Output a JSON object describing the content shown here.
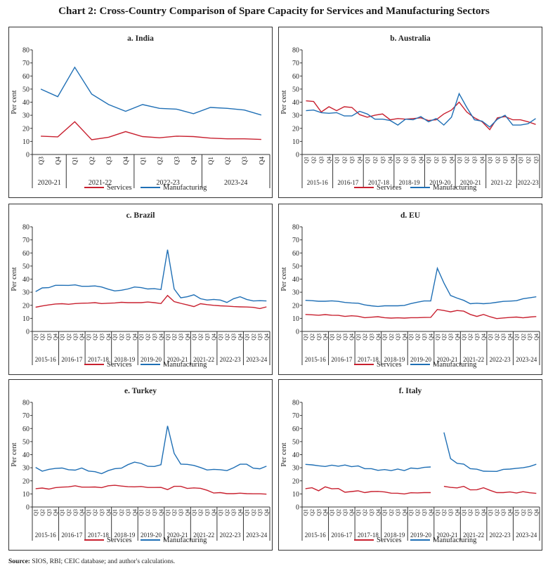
{
  "title": "Chart 2: Cross-Country Comparison of Spare Capacity for Services and Manufacturing Sectors",
  "source_label": "Source:",
  "source_text": "SIOS, RBI; CEIC database; and author's calculations.",
  "colors": {
    "Services": "#c8202f",
    "Manufacturing": "#1f6fb5"
  },
  "chart_data": [
    {
      "type": "line",
      "title": "a. India",
      "ylabel": "Per cent",
      "ylim": [
        0,
        80
      ],
      "yticks": [
        0,
        10,
        20,
        30,
        40,
        50,
        60,
        70,
        80
      ],
      "groups": [
        {
          "label": "2020-21",
          "quarters": [
            "Q3",
            "Q4"
          ]
        },
        {
          "label": "2021-22",
          "quarters": [
            "Q1",
            "Q2",
            "Q3",
            "Q4"
          ]
        },
        {
          "label": "2022-23",
          "quarters": [
            "Q1",
            "Q2",
            "Q3",
            "Q4"
          ]
        },
        {
          "label": "2023-24",
          "quarters": [
            "Q1",
            "Q2",
            "Q3",
            "Q4"
          ]
        }
      ],
      "series": [
        {
          "name": "Services",
          "values": [
            14,
            13.5,
            25,
            11.3,
            13.2,
            17.5,
            13.7,
            12.8,
            14,
            13.7,
            12.5,
            12,
            12,
            11.5
          ]
        },
        {
          "name": "Manufacturing",
          "values": [
            50,
            44.2,
            66.7,
            46.2,
            38.2,
            33,
            38.2,
            35.3,
            34.7,
            31.2,
            36,
            35.3,
            34,
            30.2
          ]
        }
      ],
      "legend": "bottom"
    },
    {
      "type": "line",
      "title": "b. Australia",
      "ylabel": "Per cent",
      "ylim": [
        0,
        80
      ],
      "yticks": [
        0,
        10,
        20,
        30,
        40,
        50,
        60,
        70,
        80
      ],
      "groups": [
        {
          "label": "2015-16",
          "quarters": [
            "Q1",
            "Q2",
            "Q3",
            "Q4"
          ]
        },
        {
          "label": "2016-17",
          "quarters": [
            "Q1",
            "Q2",
            "Q3",
            "Q4"
          ]
        },
        {
          "label": "2017-18",
          "quarters": [
            "Q1",
            "Q2",
            "Q3",
            "Q4"
          ]
        },
        {
          "label": "2018-19",
          "quarters": [
            "Q1",
            "Q2",
            "Q3",
            "Q4"
          ]
        },
        {
          "label": "2019-20",
          "quarters": [
            "Q1",
            "Q2",
            "Q3",
            "Q4"
          ]
        },
        {
          "label": "2020-21",
          "quarters": [
            "Q1",
            "Q2",
            "Q3",
            "Q4"
          ]
        },
        {
          "label": "2021-22",
          "quarters": [
            "Q1",
            "Q2",
            "Q3",
            "Q4"
          ]
        },
        {
          "label": "2022-23",
          "quarters": [
            "Q1",
            "Q2",
            "Q3"
          ]
        }
      ],
      "series": [
        {
          "name": "Services",
          "values": [
            41,
            40.5,
            32.5,
            36.5,
            33.5,
            36.5,
            36,
            30.5,
            28.5,
            30,
            31,
            26.5,
            27.5,
            27,
            27.5,
            28,
            26,
            26.5,
            31,
            34,
            40,
            32.5,
            28,
            25,
            19,
            28,
            29,
            26.5,
            26.5,
            25,
            23
          ]
        },
        {
          "name": "Manufacturing",
          "values": [
            33.5,
            34,
            32,
            31.5,
            32,
            29.5,
            29.5,
            33,
            31,
            27,
            27,
            26,
            22.5,
            27,
            26.5,
            29,
            25,
            27.5,
            22.5,
            28.5,
            46.5,
            36,
            26.5,
            25.5,
            21,
            27,
            30,
            22.5,
            22.5,
            23.5,
            27.5
          ]
        }
      ],
      "legend": "bottom"
    },
    {
      "type": "line",
      "title": "c. Brazil",
      "ylabel": "Per cent",
      "ylim": [
        0,
        80
      ],
      "yticks": [
        0,
        10,
        20,
        30,
        40,
        50,
        60,
        70,
        80
      ],
      "groups": "standard",
      "series": [
        {
          "name": "Services",
          "values": [
            18.5,
            19.5,
            20.3,
            21,
            21.2,
            20.8,
            21.3,
            21.6,
            21.7,
            22,
            21.3,
            21.6,
            21.8,
            22.3,
            22,
            22,
            22,
            22.5,
            22,
            21.3,
            27.5,
            22.8,
            21.5,
            20.3,
            19,
            21.2,
            20.5,
            20,
            19.6,
            19.4,
            19,
            18.8,
            18.7,
            18.4,
            17.5,
            18.8
          ]
        },
        {
          "name": "Manufacturing",
          "values": [
            30.5,
            33.3,
            33.5,
            35.3,
            35.3,
            35.2,
            35.6,
            34.5,
            34.5,
            34.8,
            34,
            32.3,
            31,
            31.5,
            32.5,
            34,
            33.5,
            32.5,
            32.7,
            32,
            62.5,
            32.5,
            25.7,
            26.5,
            28,
            25,
            24,
            24.5,
            24,
            22.2,
            25,
            26.5,
            24.5,
            23.3,
            23.5,
            23.3
          ]
        }
      ],
      "legend": "bottom"
    },
    {
      "type": "line",
      "title": "d. EU",
      "ylabel": "Per cent",
      "ylim": [
        0,
        80
      ],
      "yticks": [
        0,
        10,
        20,
        30,
        40,
        50,
        60,
        70,
        80
      ],
      "groups": "standard",
      "series": [
        {
          "name": "Services",
          "values": [
            13,
            12.7,
            12.4,
            12.9,
            12.4,
            12.3,
            11.5,
            12,
            11.6,
            10.5,
            10.9,
            11.3,
            10.5,
            10.2,
            10.4,
            10.2,
            10.5,
            10.5,
            10.7,
            10.8,
            16.8,
            16,
            15,
            16,
            15.5,
            13,
            11.5,
            13,
            11.2,
            9.8,
            10.3,
            10.7,
            11,
            10.4,
            11,
            11.4
          ]
        },
        {
          "name": "Manufacturing",
          "values": [
            23.8,
            23.5,
            23.1,
            23.1,
            23.4,
            23,
            22.2,
            21.8,
            21.6,
            20.3,
            19.6,
            19.1,
            19.6,
            19.6,
            19.6,
            19.9,
            21.3,
            22.4,
            23.3,
            23.3,
            48.3,
            37,
            27.5,
            25.5,
            23.8,
            21.2,
            21.6,
            21.2,
            21.6,
            22.3,
            23,
            23.2,
            23.5,
            25,
            25.7,
            26.5
          ]
        }
      ],
      "legend": "bottom"
    },
    {
      "type": "line",
      "title": "e. Turkey",
      "ylabel": "Per cent",
      "ylim": [
        0,
        80
      ],
      "yticks": [
        0,
        10,
        20,
        30,
        40,
        50,
        60,
        70,
        80
      ],
      "groups": "standard",
      "series": [
        {
          "name": "Services",
          "values": [
            14,
            14.5,
            13.7,
            14.8,
            15.2,
            15.4,
            16.2,
            15.2,
            15.2,
            15.3,
            14.8,
            16.2,
            16.6,
            16,
            15.5,
            15.4,
            15.7,
            14.9,
            14.9,
            15,
            13.3,
            15.8,
            15.8,
            14.2,
            14.6,
            14.3,
            12.8,
            10.7,
            11,
            10.2,
            10.2,
            10.6,
            10.2,
            10.1,
            10.1,
            9.8
          ]
        },
        {
          "name": "Manufacturing",
          "values": [
            30.3,
            27.4,
            28.8,
            29.5,
            29.8,
            28.5,
            28.2,
            29.8,
            27.5,
            27,
            25.5,
            27.8,
            29.3,
            29.7,
            32.4,
            34.3,
            33.3,
            31.1,
            31,
            32.3,
            62,
            41,
            32.8,
            32.6,
            31.8,
            30.2,
            28.3,
            28.8,
            28.5,
            27.8,
            30,
            32.7,
            32.7,
            29.7,
            29.2,
            31.2
          ]
        }
      ],
      "legend": "bottom"
    },
    {
      "type": "line",
      "title": "f. Italy",
      "ylabel": "Per cent",
      "ylim": [
        0,
        80
      ],
      "yticks": [
        0,
        10,
        20,
        30,
        40,
        50,
        60,
        70,
        80
      ],
      "groups": "standard",
      "series": [
        {
          "name": "Services",
          "values": [
            14,
            14.7,
            12.4,
            15.4,
            13.9,
            14.1,
            11.3,
            11.8,
            12.4,
            11,
            11.8,
            11.9,
            11.5,
            10.6,
            10.5,
            10,
            10.9,
            10.8,
            11,
            11,
            null,
            15.8,
            15,
            14.6,
            15.8,
            13.1,
            13.2,
            14.7,
            12.7,
            11,
            11,
            11.5,
            10.7,
            11.7,
            10.9,
            10.4
          ]
        },
        {
          "name": "Manufacturing",
          "values": [
            32.6,
            32.2,
            31.5,
            31,
            32,
            31.2,
            32.1,
            30.8,
            31.4,
            29.3,
            29.3,
            28,
            28.6,
            27.8,
            29,
            27.8,
            29.8,
            29.3,
            30.3,
            30.6,
            null,
            57,
            37,
            33.4,
            32.8,
            29.3,
            28.9,
            27.4,
            27.3,
            27.2,
            28.8,
            29,
            29.6,
            30,
            31,
            32.7
          ]
        }
      ],
      "legend": "bottom"
    }
  ],
  "standard_groups": [
    {
      "label": "2015-16",
      "quarters": [
        "Q1",
        "Q2",
        "Q3",
        "Q4"
      ]
    },
    {
      "label": "2016-17",
      "quarters": [
        "Q1",
        "Q2",
        "Q3",
        "Q4"
      ]
    },
    {
      "label": "2017-18",
      "quarters": [
        "Q1",
        "Q2",
        "Q3",
        "Q4"
      ]
    },
    {
      "label": "2018-19",
      "quarters": [
        "Q1",
        "Q2",
        "Q3",
        "Q4"
      ]
    },
    {
      "label": "2019-20",
      "quarters": [
        "Q1",
        "Q2",
        "Q3",
        "Q4"
      ]
    },
    {
      "label": "2020-21",
      "quarters": [
        "Q1",
        "Q2",
        "Q3",
        "Q4"
      ]
    },
    {
      "label": "2021-22",
      "quarters": [
        "Q1",
        "Q2",
        "Q3",
        "Q4"
      ]
    },
    {
      "label": "2022-23",
      "quarters": [
        "Q1",
        "Q2",
        "Q3",
        "Q4"
      ]
    },
    {
      "label": "2023-24",
      "quarters": [
        "Q1",
        "Q2",
        "Q3",
        "Q4"
      ]
    }
  ]
}
